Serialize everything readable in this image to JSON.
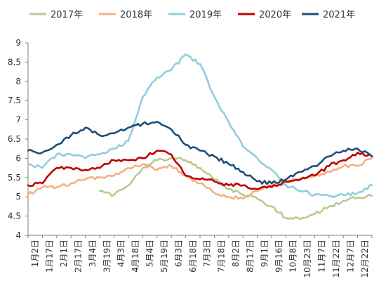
{
  "chart_data": {
    "type": "line",
    "title": "",
    "xlabel": "",
    "ylabel": "",
    "ylim": [
      4,
      9
    ],
    "y_ticks": [
      4,
      4.5,
      5,
      5.5,
      6,
      6.5,
      7,
      7.5,
      8,
      8.5,
      9
    ],
    "y_tick_labels": [
      "4",
      "4.5",
      "5",
      "5.5",
      "6",
      "6.5",
      "7",
      "7.5",
      "8",
      "8.5",
      "9"
    ],
    "grid": false,
    "legend_position": "top",
    "x_tick_labels": [
      "1月2日",
      "1月17日",
      "2月1日",
      "2月17日",
      "3月4日",
      "3月19日",
      "4月3日",
      "4月18日",
      "5月4日",
      "5月19日",
      "6月3日",
      "6月18日",
      "7月3日",
      "7月18日",
      "8月2日",
      "8月17日",
      "9月1日",
      "9月16日",
      "10月8日",
      "10月23日",
      "11月7日",
      "11月22日",
      "12月7日",
      "12月22日"
    ],
    "x": [
      0,
      1,
      2,
      3,
      4,
      5,
      6,
      7,
      8,
      9,
      10,
      11,
      12,
      13,
      14,
      15,
      16,
      17,
      18,
      19,
      20,
      21,
      22,
      23,
      24
    ],
    "series": [
      {
        "name": "2017年",
        "color": "#b5cc8e",
        "values": [
          null,
          null,
          null,
          null,
          null,
          5.15,
          5.05,
          5.3,
          5.75,
          5.95,
          6.0,
          5.95,
          5.75,
          5.45,
          5.2,
          5.05,
          4.95,
          4.75,
          4.45,
          4.42,
          4.55,
          4.75,
          4.9,
          4.98,
          5.02
        ]
      },
      {
        "name": "2018年",
        "color": "#f4b183",
        "values": [
          5.05,
          5.25,
          5.25,
          5.35,
          5.45,
          5.5,
          5.55,
          5.75,
          5.85,
          5.7,
          5.8,
          5.55,
          5.35,
          5.1,
          5.0,
          4.95,
          5.15,
          5.3,
          5.4,
          5.45,
          5.55,
          5.65,
          5.8,
          5.8,
          6.0
        ]
      },
      {
        "name": "2019年",
        "color": "#92cddc",
        "values": [
          5.85,
          5.75,
          6.1,
          6.1,
          6.0,
          6.1,
          6.25,
          6.45,
          7.6,
          8.1,
          8.3,
          8.7,
          8.45,
          7.6,
          6.95,
          6.3,
          6.0,
          5.7,
          5.3,
          5.15,
          5.05,
          5.02,
          5.05,
          5.1,
          5.3
        ]
      },
      {
        "name": "2020年",
        "color": "#c00000",
        "values": [
          5.3,
          5.35,
          5.75,
          5.75,
          5.7,
          5.75,
          5.95,
          5.95,
          6.0,
          6.2,
          6.1,
          5.55,
          5.45,
          5.4,
          5.3,
          5.3,
          5.2,
          5.25,
          5.4,
          5.45,
          5.55,
          5.8,
          5.95,
          6.15,
          6.05
        ]
      },
      {
        "name": "2021年",
        "color": "#1f4e79",
        "values": [
          6.2,
          6.15,
          6.35,
          6.6,
          6.8,
          6.6,
          6.65,
          6.8,
          6.9,
          6.95,
          6.75,
          6.35,
          6.2,
          6.05,
          5.85,
          5.65,
          5.4,
          5.35,
          5.45,
          5.65,
          5.8,
          6.05,
          6.2,
          6.25,
          6.05
        ]
      }
    ]
  }
}
